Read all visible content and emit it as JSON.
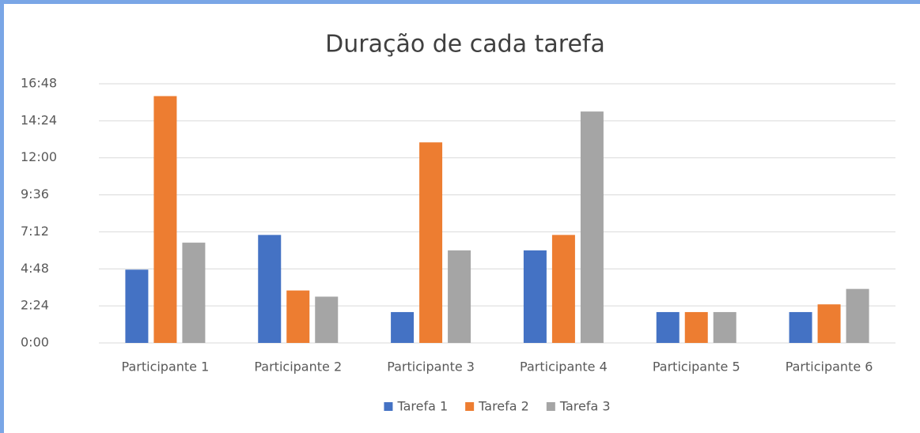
{
  "chart_data": {
    "type": "bar",
    "title": "Duração de cada tarefa",
    "categories": [
      "Participante 1",
      "Participante 2",
      "Participante 3",
      "Participante 4",
      "Participante 5",
      "Participante 6"
    ],
    "series": [
      {
        "name": "Tarefa 1",
        "color": "#4472c4",
        "values": [
          4.75,
          7,
          2,
          6,
          2,
          2
        ]
      },
      {
        "name": "Tarefa 2",
        "color": "#ed7d31",
        "values": [
          16,
          3.4,
          13,
          7,
          2,
          2.5
        ]
      },
      {
        "name": "Tarefa 3",
        "color": "#a5a5a5",
        "values": [
          6.5,
          3,
          6,
          15,
          2,
          3.5
        ]
      }
    ],
    "ylim": [
      0,
      16.8
    ],
    "yticks": [
      {
        "value": 0,
        "label": "0:00"
      },
      {
        "value": 2.4,
        "label": "2:24"
      },
      {
        "value": 4.8,
        "label": "4:48"
      },
      {
        "value": 7.2,
        "label": "7:12"
      },
      {
        "value": 9.6,
        "label": "9:36"
      },
      {
        "value": 12,
        "label": "12:00"
      },
      {
        "value": 14.4,
        "label": "14:24"
      },
      {
        "value": 16.8,
        "label": "16:48"
      }
    ],
    "grid": true,
    "legend": "bottom"
  }
}
